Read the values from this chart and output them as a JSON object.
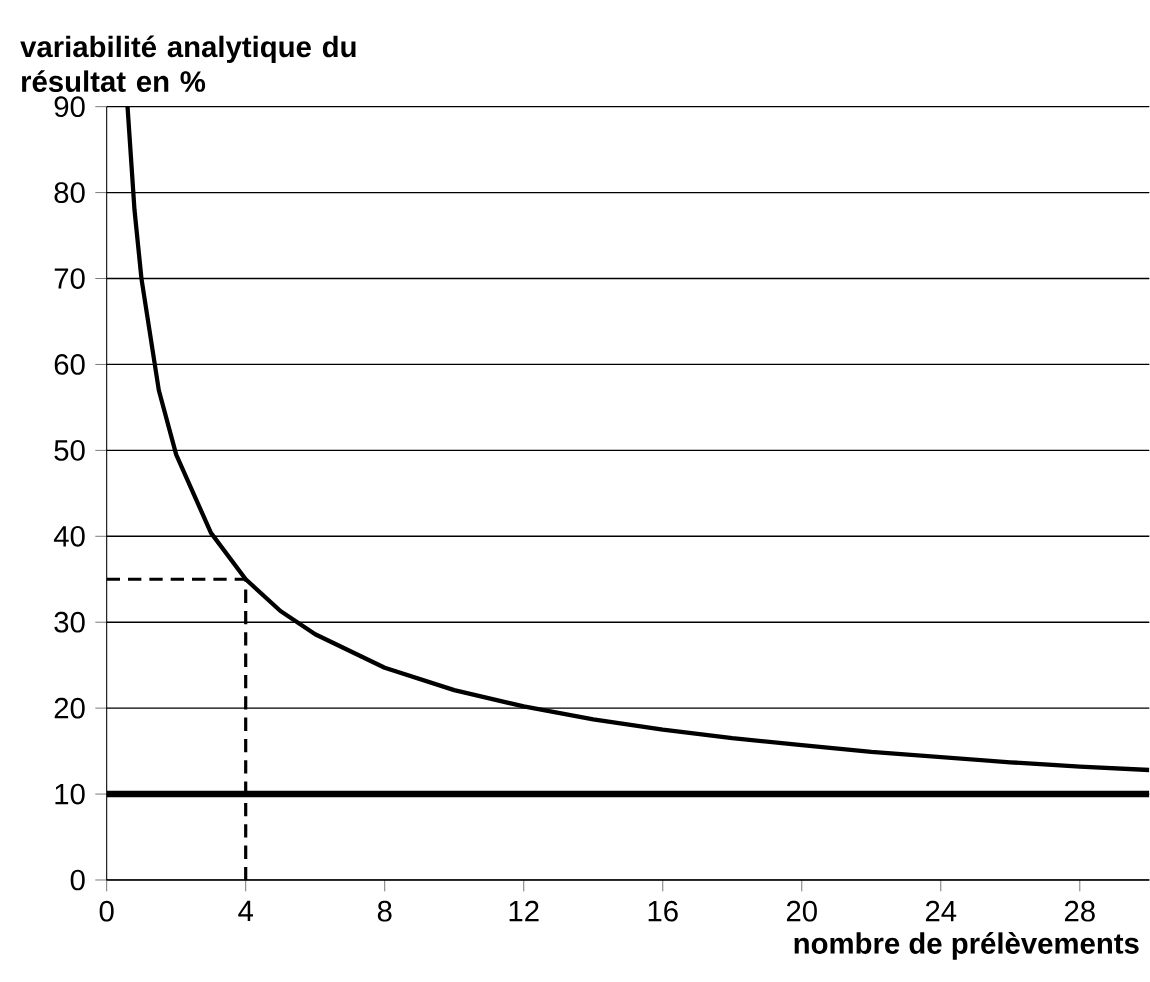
{
  "chart_data": {
    "type": "line",
    "xlabel": "nombre de prélèvements",
    "ylabel": "variabilité analytique du résultat en %",
    "xlim": [
      0,
      30
    ],
    "ylim": [
      0,
      90
    ],
    "xticks": [
      0,
      4,
      8,
      12,
      16,
      20,
      24,
      28
    ],
    "yticks": [
      0,
      10,
      20,
      30,
      40,
      50,
      60,
      70,
      80,
      90
    ],
    "grid": "y",
    "series": [
      {
        "color": "#000000",
        "line_style": "solid",
        "x": [
          0.6,
          0.8,
          1,
          1.5,
          2,
          3,
          4,
          5,
          6,
          8,
          10,
          12,
          14,
          16,
          18,
          20,
          22,
          24,
          26,
          28,
          30
        ],
        "values": [
          90,
          78,
          70,
          57,
          49.5,
          40.4,
          35,
          31.3,
          28.6,
          24.7,
          22.1,
          20.2,
          18.7,
          17.5,
          16.5,
          15.7,
          14.9,
          14.3,
          13.7,
          13.2,
          12.8
        ]
      },
      {
        "color": "#000000",
        "line_style": "dashed",
        "x": [
          0,
          4,
          4
        ],
        "values": [
          35,
          35,
          0
        ]
      }
    ],
    "ref_lines": [
      {
        "axis": "y",
        "value": 10,
        "color": "#000000",
        "line_style": "solid"
      }
    ]
  }
}
